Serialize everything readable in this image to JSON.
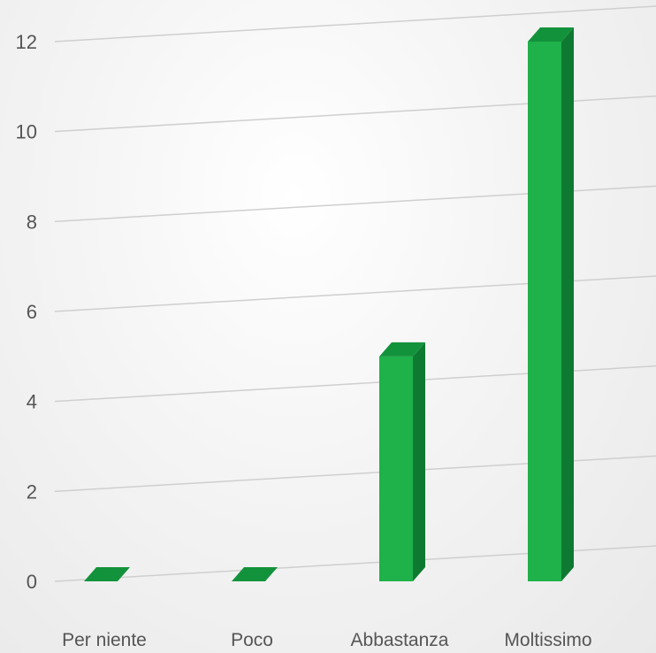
{
  "chart_data": {
    "type": "bar",
    "categories": [
      "Per niente",
      "Poco",
      "Abbastanza",
      "Moltissimo"
    ],
    "values": [
      0,
      0,
      5,
      12
    ],
    "ylim": [
      0,
      12
    ],
    "yticks": [
      0,
      2,
      4,
      6,
      8,
      10,
      12
    ],
    "ytick_labels": [
      "0",
      "2",
      "4",
      "6",
      "8",
      "10",
      "12"
    ],
    "title": "",
    "xlabel": "",
    "ylabel": "",
    "grid": true,
    "style": "3d-perspective",
    "colors": {
      "bar_front": "#1fb14a",
      "bar_side": "#0e7a31",
      "bar_top": "#13923c",
      "grid": "#cfcfcf",
      "labels": "#555555"
    }
  }
}
